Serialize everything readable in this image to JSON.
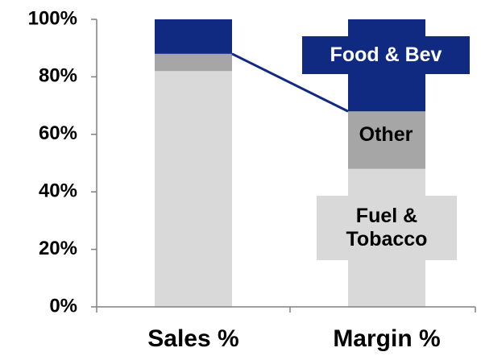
{
  "chart_data": {
    "type": "stacked_bar",
    "categories": [
      "Sales %",
      "Margin %"
    ],
    "series": [
      {
        "name": "Fuel & Tobacco",
        "color": "#d9d9d9",
        "values": [
          82,
          48
        ]
      },
      {
        "name": "Other",
        "color": "#a6a6a6",
        "values": [
          6,
          20
        ]
      },
      {
        "name": "Food & Bev",
        "color": "#0f2a80",
        "values": [
          12,
          32
        ]
      }
    ],
    "ylim": [
      0,
      100
    ],
    "yticks": [
      {
        "value": 0,
        "label": "0%"
      },
      {
        "value": 20,
        "label": "20%"
      },
      {
        "value": 40,
        "label": "40%"
      },
      {
        "value": 60,
        "label": "60%"
      },
      {
        "value": 80,
        "label": "80%"
      },
      {
        "value": 100,
        "label": "100%"
      }
    ]
  }
}
